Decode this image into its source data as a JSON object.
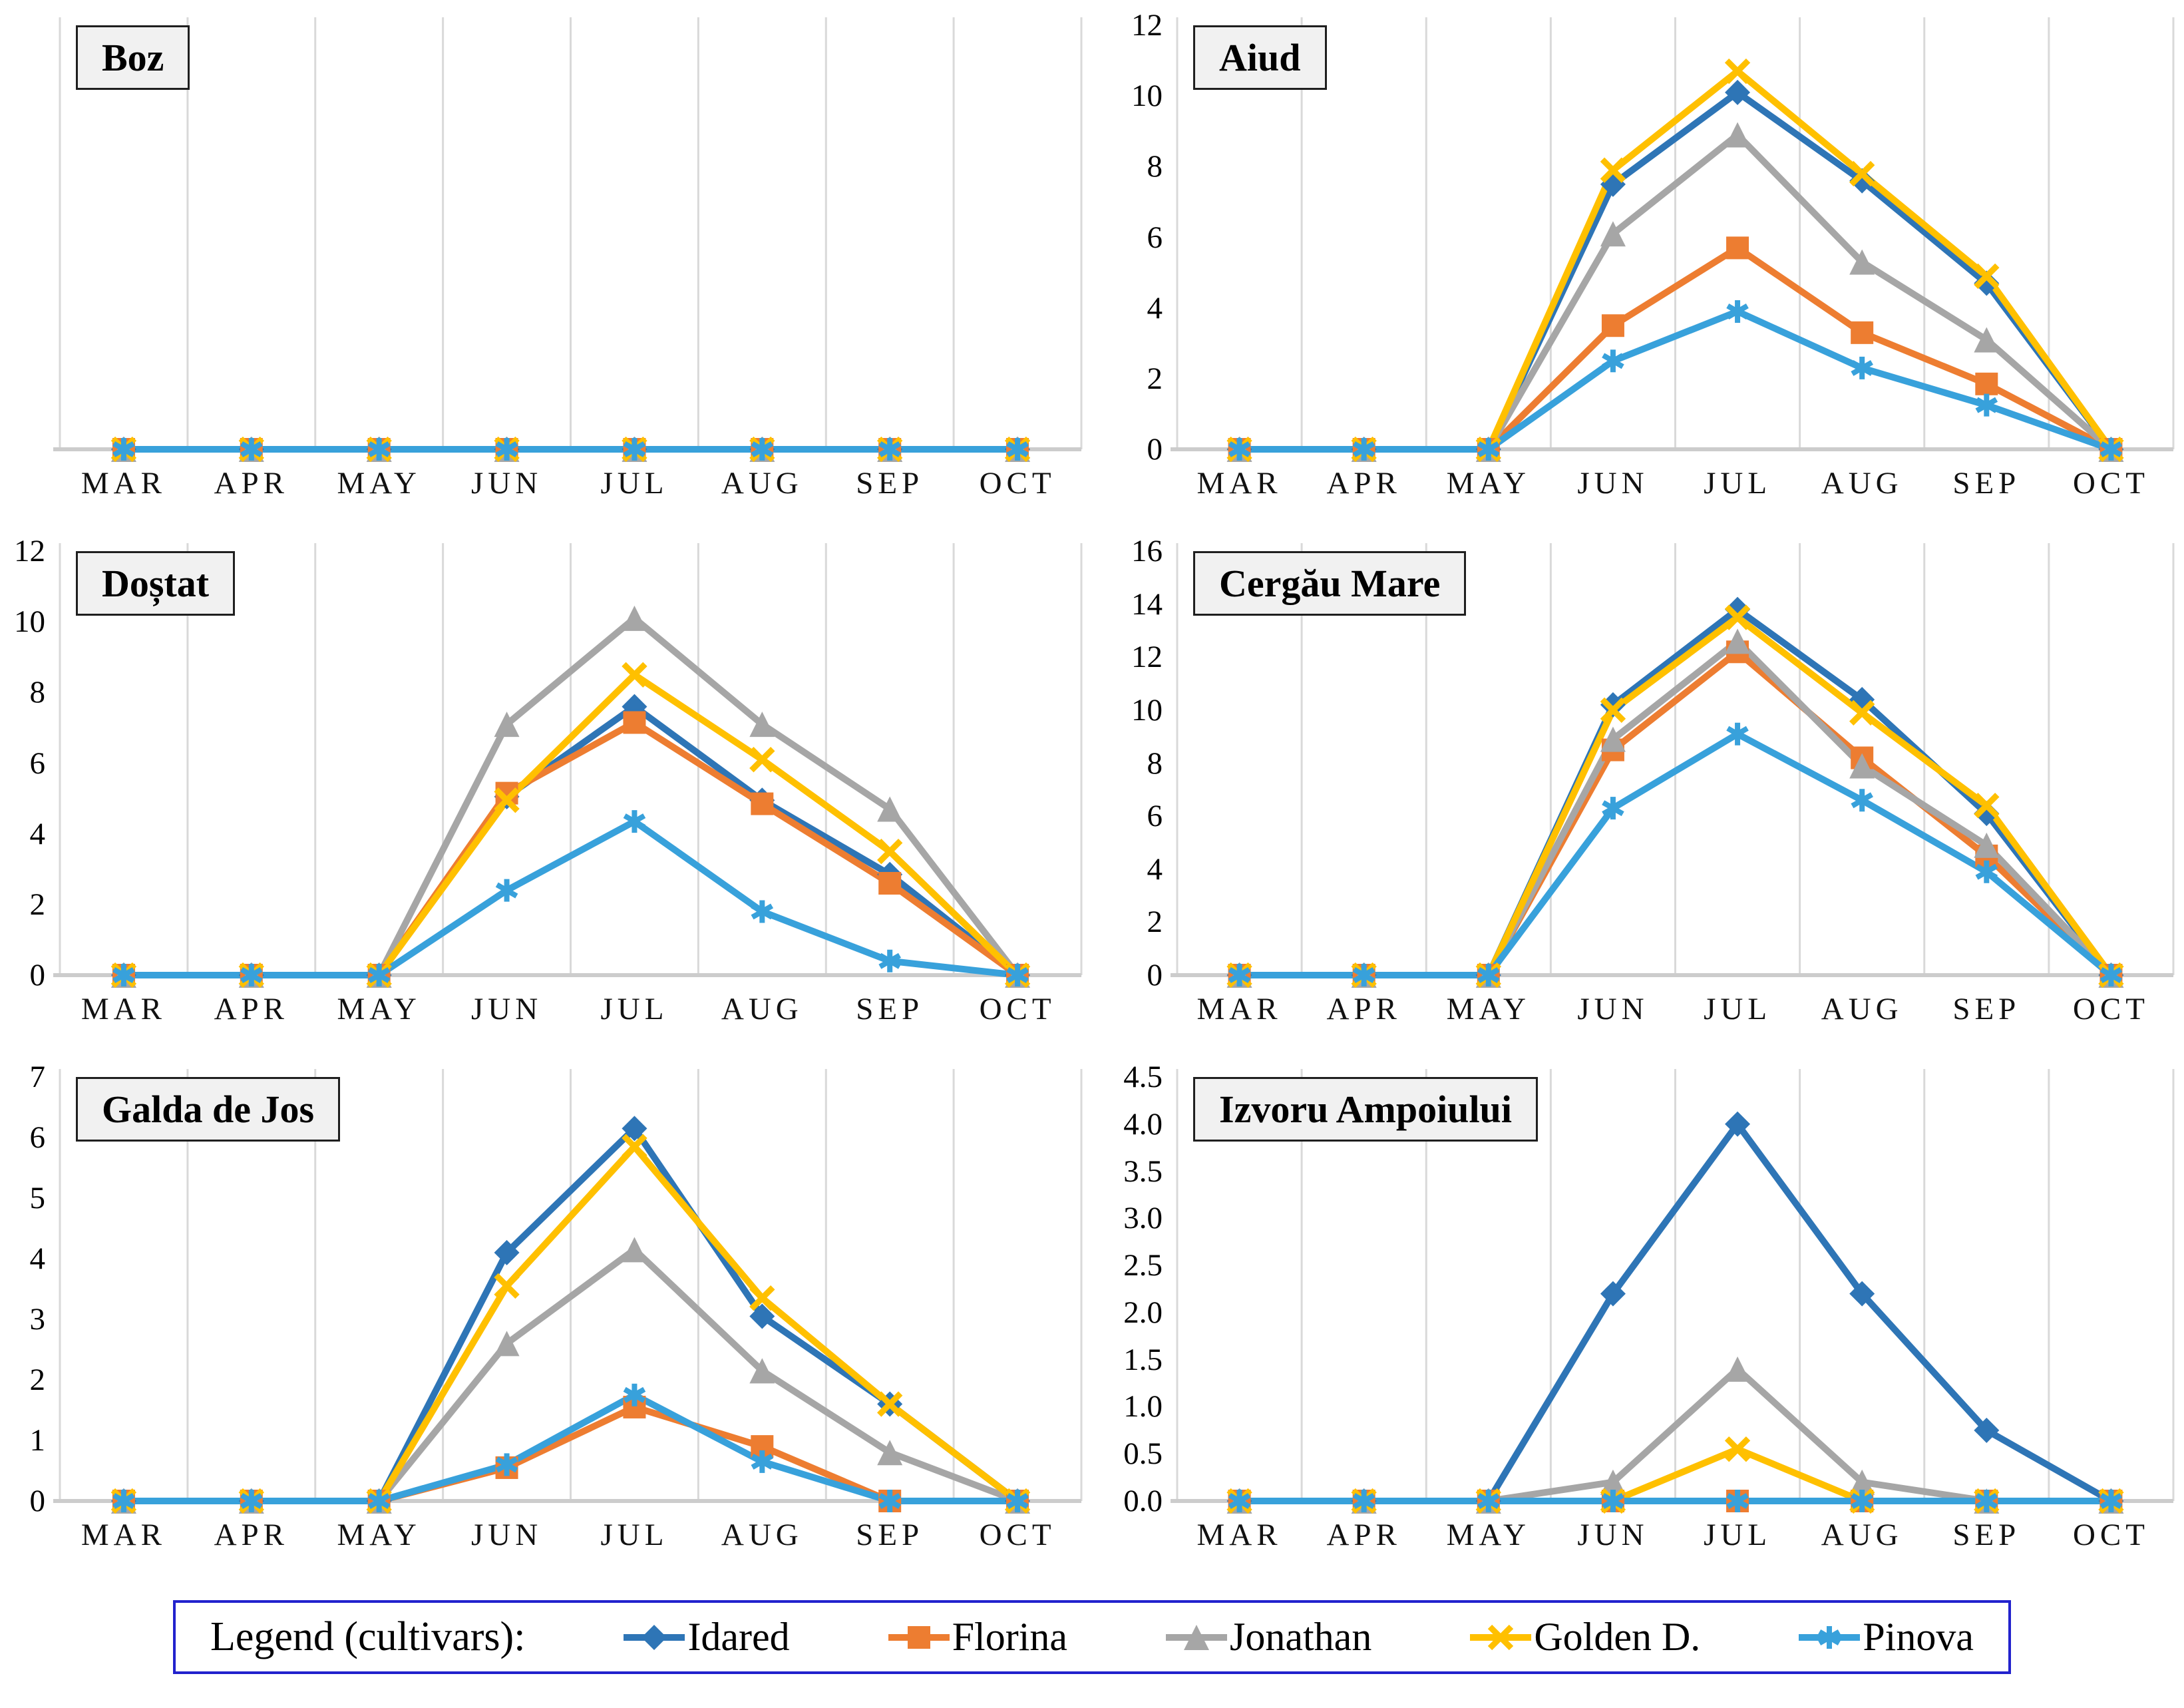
{
  "page": {
    "background": "#ffffff"
  },
  "months": [
    "MAR",
    "APR",
    "MAY",
    "JUN",
    "JUL",
    "AUG",
    "SEP",
    "OCT"
  ],
  "series_meta": [
    {
      "name": "Idared",
      "color": "#2e75b6",
      "marker": "diamond"
    },
    {
      "name": "Florina",
      "color": "#ed7d31",
      "marker": "square"
    },
    {
      "name": "Jonathan",
      "color": "#a6a6a6",
      "marker": "triangle"
    },
    {
      "name": "Golden D.",
      "color": "#ffc000",
      "marker": "x"
    },
    {
      "name": "Pinova",
      "color": "#38a1db",
      "marker": "star"
    }
  ],
  "legend": {
    "prefix": "Legend (cultivars):",
    "border_color": "#2222cd",
    "items": [
      "Idared",
      "Florina",
      "Jonathan",
      "Golden D.",
      "Pinova"
    ]
  },
  "chart_data": [
    {
      "type": "line",
      "title": "Boz",
      "position": "top-left",
      "categories": [
        "MAR",
        "APR",
        "MAY",
        "JUN",
        "JUL",
        "AUG",
        "SEP",
        "OCT"
      ],
      "ylim": [
        0,
        12
      ],
      "yticks": [],
      "ytick_labels": [],
      "grid": "vertical-only",
      "legend_position": "bottom-shared",
      "series": [
        {
          "name": "Idared",
          "values": [
            0,
            0,
            0,
            0,
            0,
            0,
            0,
            0
          ]
        },
        {
          "name": "Florina",
          "values": [
            0,
            0,
            0,
            0,
            0,
            0,
            0,
            0
          ]
        },
        {
          "name": "Jonathan",
          "values": [
            0,
            0,
            0,
            0,
            0,
            0,
            0,
            0
          ]
        },
        {
          "name": "Golden D.",
          "values": [
            0,
            0,
            0,
            0,
            0,
            0,
            0,
            0
          ]
        },
        {
          "name": "Pinova",
          "values": [
            0,
            0,
            0,
            0,
            0,
            0,
            0,
            0
          ]
        }
      ]
    },
    {
      "type": "line",
      "title": "Aiud",
      "position": "top-right",
      "categories": [
        "MAR",
        "APR",
        "MAY",
        "JUN",
        "JUL",
        "AUG",
        "SEP",
        "OCT"
      ],
      "ylim": [
        0,
        12
      ],
      "yticks": [
        0,
        2,
        4,
        6,
        8,
        10,
        12
      ],
      "ytick_labels": [
        "0",
        "2",
        "4",
        "6",
        "8",
        "10",
        "12"
      ],
      "grid": "vertical-only",
      "series": [
        {
          "name": "Idared",
          "values": [
            0,
            0,
            0,
            7.5,
            10.1,
            7.6,
            4.7,
            0
          ]
        },
        {
          "name": "Florina",
          "values": [
            0,
            0,
            0,
            3.5,
            5.7,
            3.3,
            1.85,
            0
          ]
        },
        {
          "name": "Jonathan",
          "values": [
            0,
            0,
            0,
            6.1,
            8.9,
            5.3,
            3.1,
            0
          ]
        },
        {
          "name": "Golden D.",
          "values": [
            0,
            0,
            0,
            7.9,
            10.7,
            7.8,
            4.9,
            0
          ]
        },
        {
          "name": "Pinova",
          "values": [
            0,
            0,
            0,
            2.5,
            3.9,
            2.3,
            1.25,
            0
          ]
        }
      ]
    },
    {
      "type": "line",
      "title": "Doștat",
      "position": "middle-left",
      "categories": [
        "MAR",
        "APR",
        "MAY",
        "JUN",
        "JUL",
        "AUG",
        "SEP",
        "OCT"
      ],
      "ylim": [
        0,
        12
      ],
      "yticks": [
        0,
        2,
        4,
        6,
        8,
        10,
        12
      ],
      "ytick_labels": [
        "0",
        "2",
        "4",
        "6",
        "8",
        "10",
        "12"
      ],
      "grid": "vertical-only",
      "series": [
        {
          "name": "Idared",
          "values": [
            0,
            0,
            0,
            5.05,
            7.6,
            4.95,
            2.85,
            0
          ]
        },
        {
          "name": "Florina",
          "values": [
            0,
            0,
            0,
            5.15,
            7.15,
            4.85,
            2.6,
            0
          ]
        },
        {
          "name": "Jonathan",
          "values": [
            0,
            0,
            0,
            7.1,
            10.1,
            7.1,
            4.7,
            0
          ]
        },
        {
          "name": "Golden D.",
          "values": [
            0,
            0,
            0,
            4.95,
            8.5,
            6.1,
            3.5,
            0
          ]
        },
        {
          "name": "Pinova",
          "values": [
            0,
            0,
            0,
            2.4,
            4.35,
            1.8,
            0.4,
            0
          ]
        }
      ]
    },
    {
      "type": "line",
      "title": "Cergău Mare",
      "position": "middle-right",
      "categories": [
        "MAR",
        "APR",
        "MAY",
        "JUN",
        "JUL",
        "AUG",
        "SEP",
        "OCT"
      ],
      "ylim": [
        0,
        16
      ],
      "yticks": [
        0,
        2,
        4,
        6,
        8,
        10,
        12,
        14,
        16
      ],
      "ytick_labels": [
        "0",
        "2",
        "4",
        "6",
        "8",
        "10",
        "12",
        "14",
        "16"
      ],
      "grid": "vertical-only",
      "series": [
        {
          "name": "Idared",
          "values": [
            0,
            0,
            0,
            10.2,
            13.8,
            10.4,
            6.1,
            0
          ]
        },
        {
          "name": "Florina",
          "values": [
            0,
            0,
            0,
            8.5,
            12.2,
            8.2,
            4.5,
            0
          ]
        },
        {
          "name": "Jonathan",
          "values": [
            0,
            0,
            0,
            8.9,
            12.6,
            7.9,
            4.9,
            0
          ]
        },
        {
          "name": "Golden D.",
          "values": [
            0,
            0,
            0,
            10.0,
            13.5,
            9.9,
            6.4,
            0
          ]
        },
        {
          "name": "Pinova",
          "values": [
            0,
            0,
            0,
            6.3,
            9.1,
            6.6,
            3.9,
            0
          ]
        }
      ]
    },
    {
      "type": "line",
      "title": "Galda de Jos",
      "position": "bottom-left",
      "categories": [
        "MAR",
        "APR",
        "MAY",
        "JUN",
        "JUL",
        "AUG",
        "SEP",
        "OCT"
      ],
      "ylim": [
        0,
        7
      ],
      "yticks": [
        0,
        1,
        2,
        3,
        4,
        5,
        6,
        7
      ],
      "ytick_labels": [
        "0",
        "1",
        "2",
        "3",
        "4",
        "5",
        "6",
        "7"
      ],
      "grid": "vertical-only",
      "series": [
        {
          "name": "Idared",
          "values": [
            0,
            0,
            0,
            4.1,
            6.15,
            3.05,
            1.6,
            0
          ]
        },
        {
          "name": "Florina",
          "values": [
            0,
            0,
            0,
            0.55,
            1.55,
            0.9,
            0,
            0
          ]
        },
        {
          "name": "Jonathan",
          "values": [
            0,
            0,
            0,
            2.6,
            4.15,
            2.15,
            0.8,
            0
          ]
        },
        {
          "name": "Golden D.",
          "values": [
            0,
            0,
            0,
            3.55,
            5.85,
            3.35,
            1.6,
            0
          ]
        },
        {
          "name": "Pinova",
          "values": [
            0,
            0,
            0,
            0.6,
            1.75,
            0.65,
            0,
            0
          ]
        }
      ]
    },
    {
      "type": "line",
      "title": "Izvoru Ampoiului",
      "position": "bottom-right",
      "categories": [
        "MAR",
        "APR",
        "MAY",
        "JUN",
        "JUL",
        "AUG",
        "SEP",
        "OCT"
      ],
      "ylim": [
        0,
        4.5
      ],
      "yticks": [
        0,
        0.5,
        1.0,
        1.5,
        2.0,
        2.5,
        3.0,
        3.5,
        4.0,
        4.5
      ],
      "ytick_labels": [
        "0.0",
        "0.5",
        "1.0",
        "1.5",
        "2.0",
        "2.5",
        "3.0",
        "3.5",
        "4.0",
        "4.5"
      ],
      "grid": "vertical-only",
      "series": [
        {
          "name": "Idared",
          "values": [
            0,
            0,
            0,
            2.2,
            4.0,
            2.2,
            0.75,
            0
          ]
        },
        {
          "name": "Florina",
          "values": [
            0,
            0,
            0,
            0,
            0,
            0,
            0,
            0
          ]
        },
        {
          "name": "Jonathan",
          "values": [
            0,
            0,
            0,
            0.2,
            1.4,
            0.2,
            0,
            0
          ]
        },
        {
          "name": "Golden D.",
          "values": [
            0,
            0,
            0,
            0,
            0.55,
            0,
            0,
            0
          ]
        },
        {
          "name": "Pinova",
          "values": [
            0,
            0,
            0,
            0,
            0,
            0,
            0,
            0
          ]
        }
      ]
    }
  ],
  "style": {
    "gridline_color": "#d9d9d9",
    "axis_line_color": "#cccccc",
    "title_box_bg": "#f1f1f1",
    "title_box_border": "#1f1f1f"
  }
}
